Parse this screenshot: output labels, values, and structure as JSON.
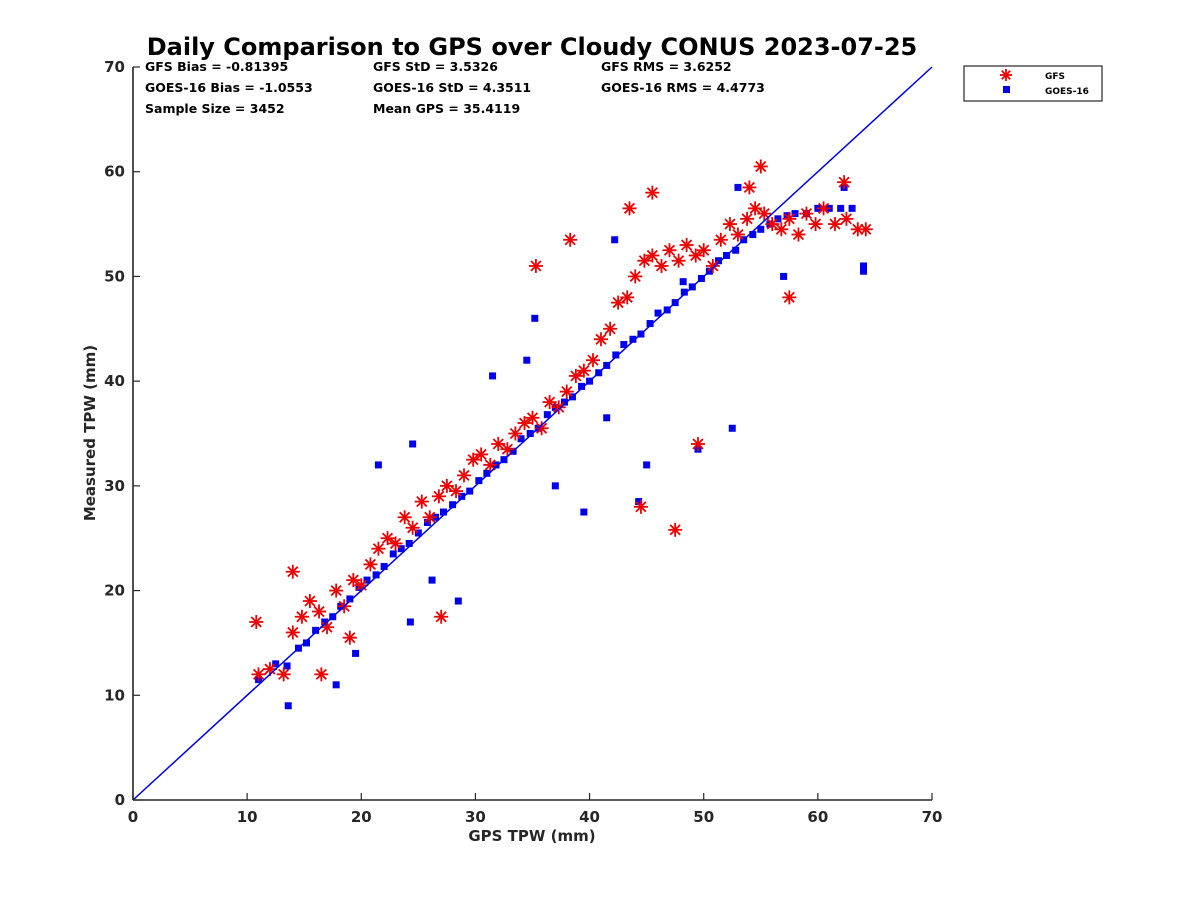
{
  "chart_data": {
    "type": "scatter",
    "title": "Daily Comparison to GPS over Cloudy CONUS 2023-07-25",
    "xlabel": "GPS TPW (mm)",
    "ylabel": "Measured TPW (mm)",
    "xlim": [
      0,
      70
    ],
    "ylim": [
      0,
      70
    ],
    "xticks": [
      "0",
      "10",
      "20",
      "30",
      "40",
      "50",
      "60",
      "70"
    ],
    "yticks": [
      "0",
      "10",
      "20",
      "30",
      "40",
      "50",
      "60",
      "70"
    ],
    "grid": false,
    "legend_position": "outside-top-right",
    "reference_line": {
      "x": [
        0,
        70
      ],
      "y": [
        0,
        70
      ],
      "color": "#0000ee"
    },
    "stats": [
      [
        "GFS Bias = -0.81395",
        "GFS StD = 3.5326",
        "GFS RMS = 3.6252"
      ],
      [
        "GOES-16 Bias = -1.0553",
        "GOES-16 StD = 4.3511",
        "GOES-16 RMS = 4.4773"
      ],
      [
        "Sample Size = 3452",
        "Mean GPS = 35.4119",
        ""
      ]
    ],
    "series": [
      {
        "name": "GOES-16",
        "marker": "square",
        "color": "#0000ee",
        "x": [
          11.0,
          12.5,
          13.5,
          14.5,
          15.2,
          16.0,
          16.8,
          17.5,
          18.2,
          19.0,
          19.8,
          20.5,
          21.3,
          22.0,
          22.8,
          23.5,
          24.2,
          25.0,
          25.8,
          26.5,
          27.2,
          28.0,
          28.8,
          29.5,
          30.3,
          31.0,
          31.8,
          32.5,
          33.3,
          34.0,
          34.8,
          35.5,
          36.3,
          37.0,
          37.8,
          38.5,
          39.3,
          40.0,
          40.8,
          41.5,
          42.3,
          43.0,
          43.8,
          44.5,
          45.3,
          46.0,
          46.8,
          47.5,
          48.3,
          49.0,
          49.8,
          50.5,
          51.3,
          52.0,
          52.8,
          53.5,
          54.3,
          55.0,
          55.8,
          56.5,
          57.3,
          58.0,
          59.0,
          60.0,
          61.0,
          62.0,
          63.0,
          64.0,
          13.6,
          17.8,
          19.5,
          24.3,
          26.2,
          28.5,
          35.2,
          44.3,
          53.0,
          62.3,
          64.0,
          39.5,
          45.0,
          49.5,
          52.5,
          48.2,
          41.5,
          37.0,
          24.5,
          21.5,
          31.5,
          34.5,
          42.2,
          57.0
        ],
        "y": [
          11.5,
          13.0,
          12.8,
          14.5,
          15.0,
          16.2,
          17.0,
          17.5,
          18.5,
          19.2,
          20.3,
          21.0,
          21.5,
          22.3,
          23.5,
          24.0,
          24.5,
          25.5,
          26.5,
          27.0,
          27.5,
          28.2,
          29.0,
          29.5,
          30.5,
          31.2,
          32.0,
          32.5,
          33.3,
          34.5,
          35.0,
          35.5,
          36.8,
          37.5,
          38.0,
          38.5,
          39.5,
          40.0,
          40.8,
          41.5,
          42.5,
          43.5,
          44.0,
          44.5,
          45.5,
          46.5,
          46.8,
          47.5,
          48.5,
          49.0,
          49.8,
          50.5,
          51.5,
          52.0,
          52.5,
          53.5,
          54.0,
          54.5,
          55.0,
          55.5,
          55.8,
          56.0,
          56.0,
          56.5,
          56.5,
          56.5,
          56.5,
          51.0,
          9.0,
          11.0,
          14.0,
          17.0,
          21.0,
          19.0,
          46.0,
          28.5,
          58.5,
          58.5,
          50.5,
          27.5,
          32.0,
          33.5,
          35.5,
          49.5,
          36.5,
          30.0,
          34.0,
          32.0,
          40.5,
          42.0,
          53.5,
          50.0
        ]
      },
      {
        "name": "GFS",
        "marker": "asterisk",
        "color": "#ee0000",
        "x": [
          11.0,
          12.0,
          13.2,
          14.0,
          14.8,
          15.5,
          16.3,
          17.0,
          17.8,
          18.5,
          19.3,
          20.0,
          20.8,
          21.5,
          22.3,
          23.0,
          23.8,
          24.5,
          25.3,
          26.0,
          26.8,
          27.5,
          28.3,
          29.0,
          29.8,
          30.5,
          31.3,
          32.0,
          32.8,
          33.5,
          34.3,
          35.0,
          35.8,
          36.5,
          37.3,
          38.0,
          38.8,
          39.5,
          40.3,
          41.0,
          41.8,
          42.5,
          43.3,
          44.0,
          44.8,
          45.5,
          46.3,
          47.0,
          47.8,
          48.5,
          49.3,
          50.0,
          50.8,
          51.5,
          52.3,
          53.0,
          53.8,
          54.5,
          55.3,
          56.0,
          56.8,
          57.5,
          58.3,
          59.0,
          59.8,
          60.5,
          61.5,
          62.5,
          63.5,
          64.2,
          10.8,
          14.0,
          35.3,
          38.3,
          44.5,
          47.5,
          49.5,
          55.0,
          54.0,
          62.3,
          45.5,
          43.5,
          57.5,
          27.0,
          16.5,
          19.0
        ],
        "y": [
          12.0,
          12.5,
          12.0,
          16.0,
          17.5,
          19.0,
          18.0,
          16.5,
          20.0,
          18.5,
          21.0,
          20.5,
          22.5,
          24.0,
          25.0,
          24.5,
          27.0,
          26.0,
          28.5,
          27.0,
          29.0,
          30.0,
          29.5,
          31.0,
          32.5,
          33.0,
          32.0,
          34.0,
          33.5,
          35.0,
          36.0,
          36.5,
          35.5,
          38.0,
          37.5,
          39.0,
          40.5,
          41.0,
          42.0,
          44.0,
          45.0,
          47.5,
          48.0,
          50.0,
          51.5,
          52.0,
          51.0,
          52.5,
          51.5,
          53.0,
          52.0,
          52.5,
          51.0,
          53.5,
          55.0,
          54.0,
          55.5,
          56.5,
          56.0,
          55.0,
          54.5,
          55.5,
          54.0,
          56.0,
          55.0,
          56.5,
          55.0,
          55.5,
          54.5,
          54.5,
          17.0,
          21.8,
          51.0,
          53.5,
          28.0,
          25.8,
          34.0,
          60.5,
          58.5,
          59.0,
          58.0,
          56.5,
          48.0,
          17.5,
          12.0,
          15.5
        ]
      }
    ]
  }
}
